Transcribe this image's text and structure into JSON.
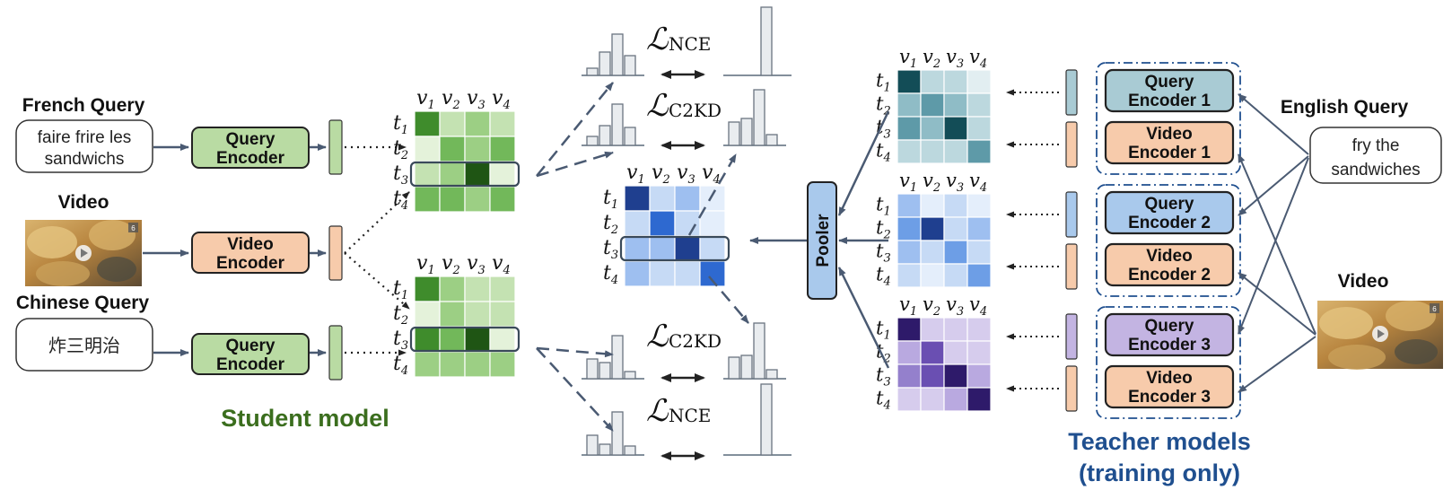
{
  "student": {
    "french_label": "French Query",
    "french_text": [
      "faire frire les",
      "sandwichs"
    ],
    "video_label": "Video",
    "chinese_label": "Chinese Query",
    "chinese_text": "炸三明治",
    "query_encoder": [
      "Query",
      "Encoder"
    ],
    "video_encoder": [
      "Video",
      "Encoder"
    ],
    "caption": "Student model"
  },
  "teacher": {
    "english_label": "English Query",
    "english_text": [
      "fry the",
      "sandwiches"
    ],
    "video_label": "Video",
    "encoders": [
      {
        "query": [
          "Query",
          "Encoder 1"
        ],
        "video": [
          "Video",
          "Encoder 1"
        ]
      },
      {
        "query": [
          "Query",
          "Encoder 2"
        ],
        "video": [
          "Video",
          "Encoder 2"
        ]
      },
      {
        "query": [
          "Query",
          "Encoder 3"
        ],
        "video": [
          "Video",
          "Encoder 3"
        ]
      }
    ],
    "pooler": "Pooler",
    "caption": [
      "Teacher models",
      "(training only)"
    ]
  },
  "matrix": {
    "col_names": [
      "v",
      "v",
      "v",
      "v"
    ],
    "col_subs": [
      "1",
      "2",
      "3",
      "4"
    ],
    "row_names": [
      "t",
      "t",
      "t",
      "t"
    ],
    "row_subs": [
      "1",
      "2",
      "3",
      "4"
    ]
  },
  "losses": {
    "top_nce": "NCE",
    "top_c2kd": "C2KD",
    "bottom_c2kd": "C2KD",
    "bottom_nce": "NCE",
    "symbol": "ℒ"
  },
  "video_badge": "6",
  "colors": {
    "green_box": "#b9dba3",
    "orange_box": "#f7cbab",
    "blue_box": "#a9c9ec",
    "purple_box": "#c3b4e2",
    "teal_box": "#a9cbd4",
    "student_caption": "#3b6e1e",
    "teacher_caption": "#1f4f8f",
    "arrow": "#4a5a72"
  }
}
